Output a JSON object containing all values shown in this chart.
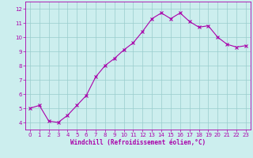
{
  "x": [
    0,
    1,
    2,
    3,
    4,
    5,
    6,
    7,
    8,
    9,
    10,
    11,
    12,
    13,
    14,
    15,
    16,
    17,
    18,
    19,
    20,
    21,
    22,
    23
  ],
  "y": [
    5.0,
    5.2,
    4.1,
    4.0,
    4.5,
    5.2,
    5.9,
    7.2,
    8.0,
    8.5,
    9.1,
    9.6,
    10.4,
    11.3,
    11.7,
    11.3,
    11.7,
    11.1,
    10.7,
    10.8,
    10.0,
    9.5,
    9.3,
    9.4
  ],
  "line_color": "#aa00aa",
  "marker": "x",
  "bg_color": "#cceeee",
  "grid_color": "#99cccc",
  "xlabel": "Windchill (Refroidissement éolien,°C)",
  "xlabel_color": "#aa00aa",
  "tick_color": "#aa00aa",
  "spine_color": "#aa00aa",
  "ylim": [
    3.5,
    12.5
  ],
  "xlim": [
    -0.5,
    23.5
  ],
  "yticks": [
    4,
    5,
    6,
    7,
    8,
    9,
    10,
    11,
    12
  ],
  "xticks": [
    0,
    1,
    2,
    3,
    4,
    5,
    6,
    7,
    8,
    9,
    10,
    11,
    12,
    13,
    14,
    15,
    16,
    17,
    18,
    19,
    20,
    21,
    22,
    23
  ],
  "tick_fontsize": 5.0,
  "xlabel_fontsize": 5.5,
  "line_width": 0.8,
  "marker_size": 2.5
}
